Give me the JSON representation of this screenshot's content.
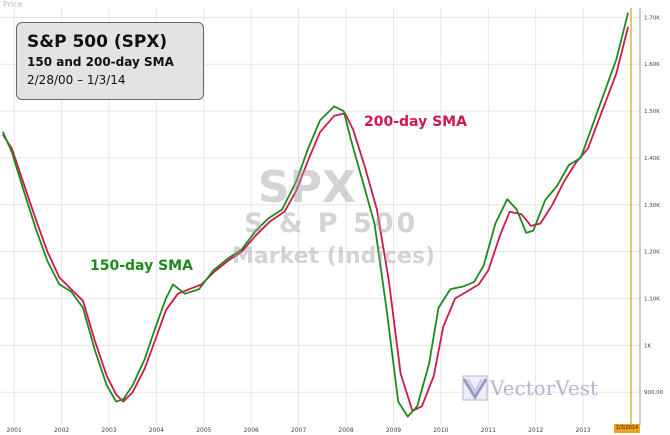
{
  "axis_title": "Price",
  "info": {
    "title": "S&P 500 (SPX)",
    "subtitle": "150 and 200-day SMA",
    "range": "2/28/00 – 1/3/14"
  },
  "watermark": {
    "symbol": "SPX",
    "name": "S & P 500",
    "category": "Market (Indices)"
  },
  "labels": {
    "sma150": "150-day SMA",
    "sma200": "200-day SMA"
  },
  "logo": {
    "text": "VectorVest"
  },
  "date_marker": "1/3/2014",
  "colors": {
    "sma150": "#1e8a1e",
    "sma200": "#d0184c",
    "marker_line": "#d4a017",
    "date_tag": "#f0a020"
  },
  "chart_data": {
    "type": "line",
    "x_unit": "year",
    "xlim": [
      2000.7,
      2014.2
    ],
    "ylim": [
      830,
      1720
    ],
    "x_ticks": [
      {
        "value": 2001,
        "label": "2001"
      },
      {
        "value": 2002,
        "label": "2002"
      },
      {
        "value": 2003,
        "label": "2003"
      },
      {
        "value": 2004,
        "label": "2004"
      },
      {
        "value": 2005,
        "label": "2005"
      },
      {
        "value": 2006,
        "label": "2006"
      },
      {
        "value": 2007,
        "label": "2007"
      },
      {
        "value": 2008,
        "label": "2008"
      },
      {
        "value": 2009,
        "label": "2009"
      },
      {
        "value": 2010,
        "label": "2010"
      },
      {
        "value": 2011,
        "label": "2011"
      },
      {
        "value": 2012,
        "label": "2012"
      },
      {
        "value": 2013,
        "label": "2013"
      }
    ],
    "y_ticks": [
      {
        "value": 900,
        "label": "900.00"
      },
      {
        "value": 1000,
        "label": "1K"
      },
      {
        "value": 1100,
        "label": "1.10K"
      },
      {
        "value": 1200,
        "label": "1.20K"
      },
      {
        "value": 1300,
        "label": "1.30K"
      },
      {
        "value": 1400,
        "label": "1.40K"
      },
      {
        "value": 1500,
        "label": "1.50K"
      },
      {
        "value": 1600,
        "label": "1.60K"
      },
      {
        "value": 1700,
        "label": "1.70K"
      }
    ],
    "marker_x": 2014.01,
    "grid": true,
    "series": [
      {
        "name": "150-day SMA",
        "points": [
          [
            2000.76,
            1456
          ],
          [
            2000.95,
            1412
          ],
          [
            2001.2,
            1330
          ],
          [
            2001.45,
            1250
          ],
          [
            2001.7,
            1180
          ],
          [
            2001.95,
            1130
          ],
          [
            2002.2,
            1115
          ],
          [
            2002.45,
            1080
          ],
          [
            2002.7,
            990
          ],
          [
            2002.95,
            915
          ],
          [
            2003.15,
            880
          ],
          [
            2003.3,
            885
          ],
          [
            2003.5,
            915
          ],
          [
            2003.75,
            970
          ],
          [
            2003.95,
            1030
          ],
          [
            2004.2,
            1100
          ],
          [
            2004.35,
            1130
          ],
          [
            2004.6,
            1110
          ],
          [
            2004.9,
            1120
          ],
          [
            2005.2,
            1160
          ],
          [
            2005.5,
            1185
          ],
          [
            2005.8,
            1205
          ],
          [
            2006.1,
            1245
          ],
          [
            2006.35,
            1270
          ],
          [
            2006.65,
            1290
          ],
          [
            2006.95,
            1350
          ],
          [
            2007.2,
            1420
          ],
          [
            2007.45,
            1480
          ],
          [
            2007.75,
            1510
          ],
          [
            2007.95,
            1500
          ],
          [
            2008.1,
            1440
          ],
          [
            2008.35,
            1350
          ],
          [
            2008.6,
            1260
          ],
          [
            2008.85,
            1080
          ],
          [
            2009.1,
            880
          ],
          [
            2009.3,
            848
          ],
          [
            2009.5,
            870
          ],
          [
            2009.75,
            960
          ],
          [
            2009.95,
            1080
          ],
          [
            2010.2,
            1120
          ],
          [
            2010.45,
            1125
          ],
          [
            2010.7,
            1135
          ],
          [
            2010.9,
            1170
          ],
          [
            2011.15,
            1260
          ],
          [
            2011.4,
            1312
          ],
          [
            2011.6,
            1290
          ],
          [
            2011.8,
            1240
          ],
          [
            2011.95,
            1245
          ],
          [
            2012.2,
            1310
          ],
          [
            2012.45,
            1340
          ],
          [
            2012.7,
            1385
          ],
          [
            2012.95,
            1400
          ],
          [
            2013.2,
            1470
          ],
          [
            2013.45,
            1540
          ],
          [
            2013.7,
            1610
          ],
          [
            2013.95,
            1710
          ]
        ]
      },
      {
        "name": "200-day SMA",
        "points": [
          [
            2000.76,
            1450
          ],
          [
            2000.95,
            1420
          ],
          [
            2001.2,
            1345
          ],
          [
            2001.45,
            1270
          ],
          [
            2001.7,
            1200
          ],
          [
            2001.95,
            1145
          ],
          [
            2002.2,
            1120
          ],
          [
            2002.45,
            1095
          ],
          [
            2002.7,
            1010
          ],
          [
            2002.95,
            935
          ],
          [
            2003.15,
            895
          ],
          [
            2003.3,
            880
          ],
          [
            2003.5,
            900
          ],
          [
            2003.75,
            950
          ],
          [
            2003.95,
            1005
          ],
          [
            2004.2,
            1075
          ],
          [
            2004.45,
            1110
          ],
          [
            2004.7,
            1120
          ],
          [
            2004.95,
            1130
          ],
          [
            2005.2,
            1155
          ],
          [
            2005.5,
            1180
          ],
          [
            2005.8,
            1200
          ],
          [
            2006.1,
            1235
          ],
          [
            2006.4,
            1265
          ],
          [
            2006.7,
            1285
          ],
          [
            2006.95,
            1330
          ],
          [
            2007.2,
            1395
          ],
          [
            2007.45,
            1455
          ],
          [
            2007.75,
            1490
          ],
          [
            2007.98,
            1495
          ],
          [
            2008.15,
            1460
          ],
          [
            2008.4,
            1380
          ],
          [
            2008.65,
            1290
          ],
          [
            2008.9,
            1140
          ],
          [
            2009.15,
            940
          ],
          [
            2009.4,
            860
          ],
          [
            2009.6,
            870
          ],
          [
            2009.85,
            935
          ],
          [
            2010.05,
            1040
          ],
          [
            2010.3,
            1100
          ],
          [
            2010.55,
            1115
          ],
          [
            2010.8,
            1130
          ],
          [
            2011.0,
            1160
          ],
          [
            2011.25,
            1235
          ],
          [
            2011.45,
            1285
          ],
          [
            2011.7,
            1280
          ],
          [
            2011.9,
            1255
          ],
          [
            2012.1,
            1260
          ],
          [
            2012.35,
            1300
          ],
          [
            2012.6,
            1350
          ],
          [
            2012.85,
            1390
          ],
          [
            2013.1,
            1420
          ],
          [
            2013.4,
            1500
          ],
          [
            2013.7,
            1580
          ],
          [
            2013.95,
            1680
          ]
        ]
      }
    ]
  }
}
